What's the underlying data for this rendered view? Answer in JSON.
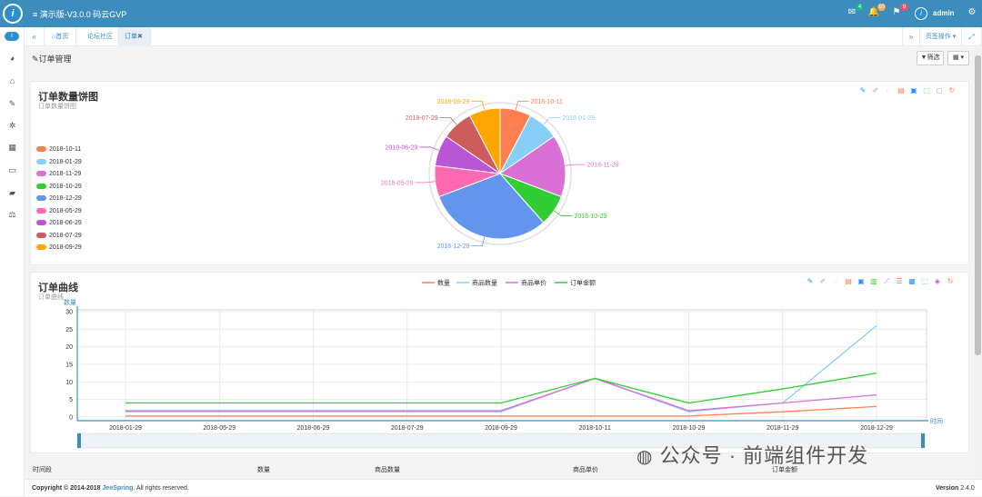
{
  "topbar": {
    "title": "≡ 演示版-V3.0.0 码云GVP",
    "logo": "i",
    "mail_count": "4",
    "bell_count": "10",
    "flag_count": "9",
    "username": "admin"
  },
  "tabbar": {
    "home": "首页",
    "forum": "论坛社区",
    "order": "订单✖",
    "page_ops": "页签操作 ▾"
  },
  "main": {
    "heading": "订单管理",
    "filter_label": "筛选",
    "grid_label": "▦ ▾"
  },
  "pie_panel": {
    "title": "订单数量饼图",
    "subtitle": "订单数量饼图"
  },
  "line_panel": {
    "title": "订单曲线",
    "subtitle": "订单曲线"
  },
  "table_header": {
    "col1": "时间段",
    "col2": "数量",
    "col3": "商品数量",
    "col4": "商品单价",
    "col5": "订单金额"
  },
  "footer": {
    "copyright": "Copyright © 2014-2018 ",
    "brand": "JeeSpring",
    "rights": ". All rights reserved.",
    "version_label": "Version",
    "version": "2.4.0"
  },
  "watermark": "公众号 · 前端组件开发",
  "colors": {
    "topbar": "#3c8dbc",
    "accent": "#2a8fcf"
  },
  "chart_data": [
    {
      "type": "pie",
      "title": "订单数量饼图",
      "categories": [
        "2018-10-11",
        "2018-01-29",
        "2018-11-29",
        "2018-10-29",
        "2018-12-29",
        "2018-05-29",
        "2018-06-29",
        "2018-07-29",
        "2018-09-29"
      ],
      "values": [
        1,
        1,
        2,
        1,
        4,
        1,
        1,
        1,
        1
      ],
      "colors": [
        "#ff7f50",
        "#87cefa",
        "#da70d6",
        "#32cd32",
        "#6495ed",
        "#ff69b4",
        "#ba55d3",
        "#cd5c5c",
        "#ffa500"
      ],
      "legend": "left"
    },
    {
      "type": "line",
      "title": "订单曲线",
      "xlabel": "时间",
      "ylabel": "数量",
      "categories": [
        "2018-01-29",
        "2018-05-29",
        "2018-06-29",
        "2018-07-29",
        "2018-09-29",
        "2018-10-11",
        "2018-10-29",
        "2018-11-29",
        "2018-12-29"
      ],
      "yticks": [
        0,
        5,
        10,
        15,
        20,
        25,
        30
      ],
      "ylim": [
        0,
        30
      ],
      "series": [
        {
          "name": "数量",
          "color": "#ff7f50",
          "values": [
            0.3,
            0.3,
            0.3,
            0.3,
            0.3,
            0.3,
            0.3,
            1.5,
            3
          ]
        },
        {
          "name": "商品数量",
          "color": "#87cefa",
          "values": [
            1.5,
            1.5,
            1.5,
            1.5,
            1.5,
            11,
            1.5,
            4,
            26
          ]
        },
        {
          "name": "商品单价",
          "color": "#da70d6",
          "values": [
            1.8,
            1.8,
            1.8,
            1.8,
            1.8,
            11,
            1.8,
            4,
            6.3
          ]
        },
        {
          "name": "订单金额",
          "color": "#32cd32",
          "values": [
            4,
            4,
            4,
            4,
            4,
            11,
            4,
            8,
            12.5
          ]
        }
      ]
    }
  ]
}
